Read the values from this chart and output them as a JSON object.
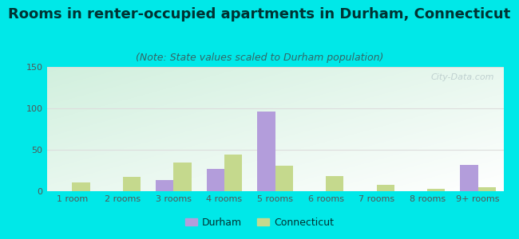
{
  "title": "Rooms in renter-occupied apartments in Durham, Connecticut",
  "subtitle": "(Note: State values scaled to Durham population)",
  "categories": [
    "1 room",
    "2 rooms",
    "3 rooms",
    "4 rooms",
    "5 rooms",
    "6 rooms",
    "7 rooms",
    "8 rooms",
    "9+ rooms"
  ],
  "durham_values": [
    0,
    0,
    13,
    27,
    96,
    0,
    0,
    0,
    32
  ],
  "connecticut_values": [
    11,
    17,
    35,
    44,
    31,
    18,
    8,
    3,
    5
  ],
  "durham_color": "#b39ddb",
  "connecticut_color": "#c5d98d",
  "background_outer": "#00e8e8",
  "plot_bg_colors": [
    "#d4eeda",
    "#ffffff"
  ],
  "ylim": [
    0,
    150
  ],
  "yticks": [
    0,
    50,
    100,
    150
  ],
  "bar_width": 0.35,
  "legend_durham": "Durham",
  "legend_connecticut": "Connecticut",
  "watermark": "City-Data.com",
  "title_fontsize": 13,
  "subtitle_fontsize": 9,
  "title_color": "#003333",
  "subtitle_color": "#336666",
  "tick_color": "#555555",
  "tick_fontsize": 8,
  "grid_color": "#dddddd",
  "watermark_color": "#bbcccc"
}
